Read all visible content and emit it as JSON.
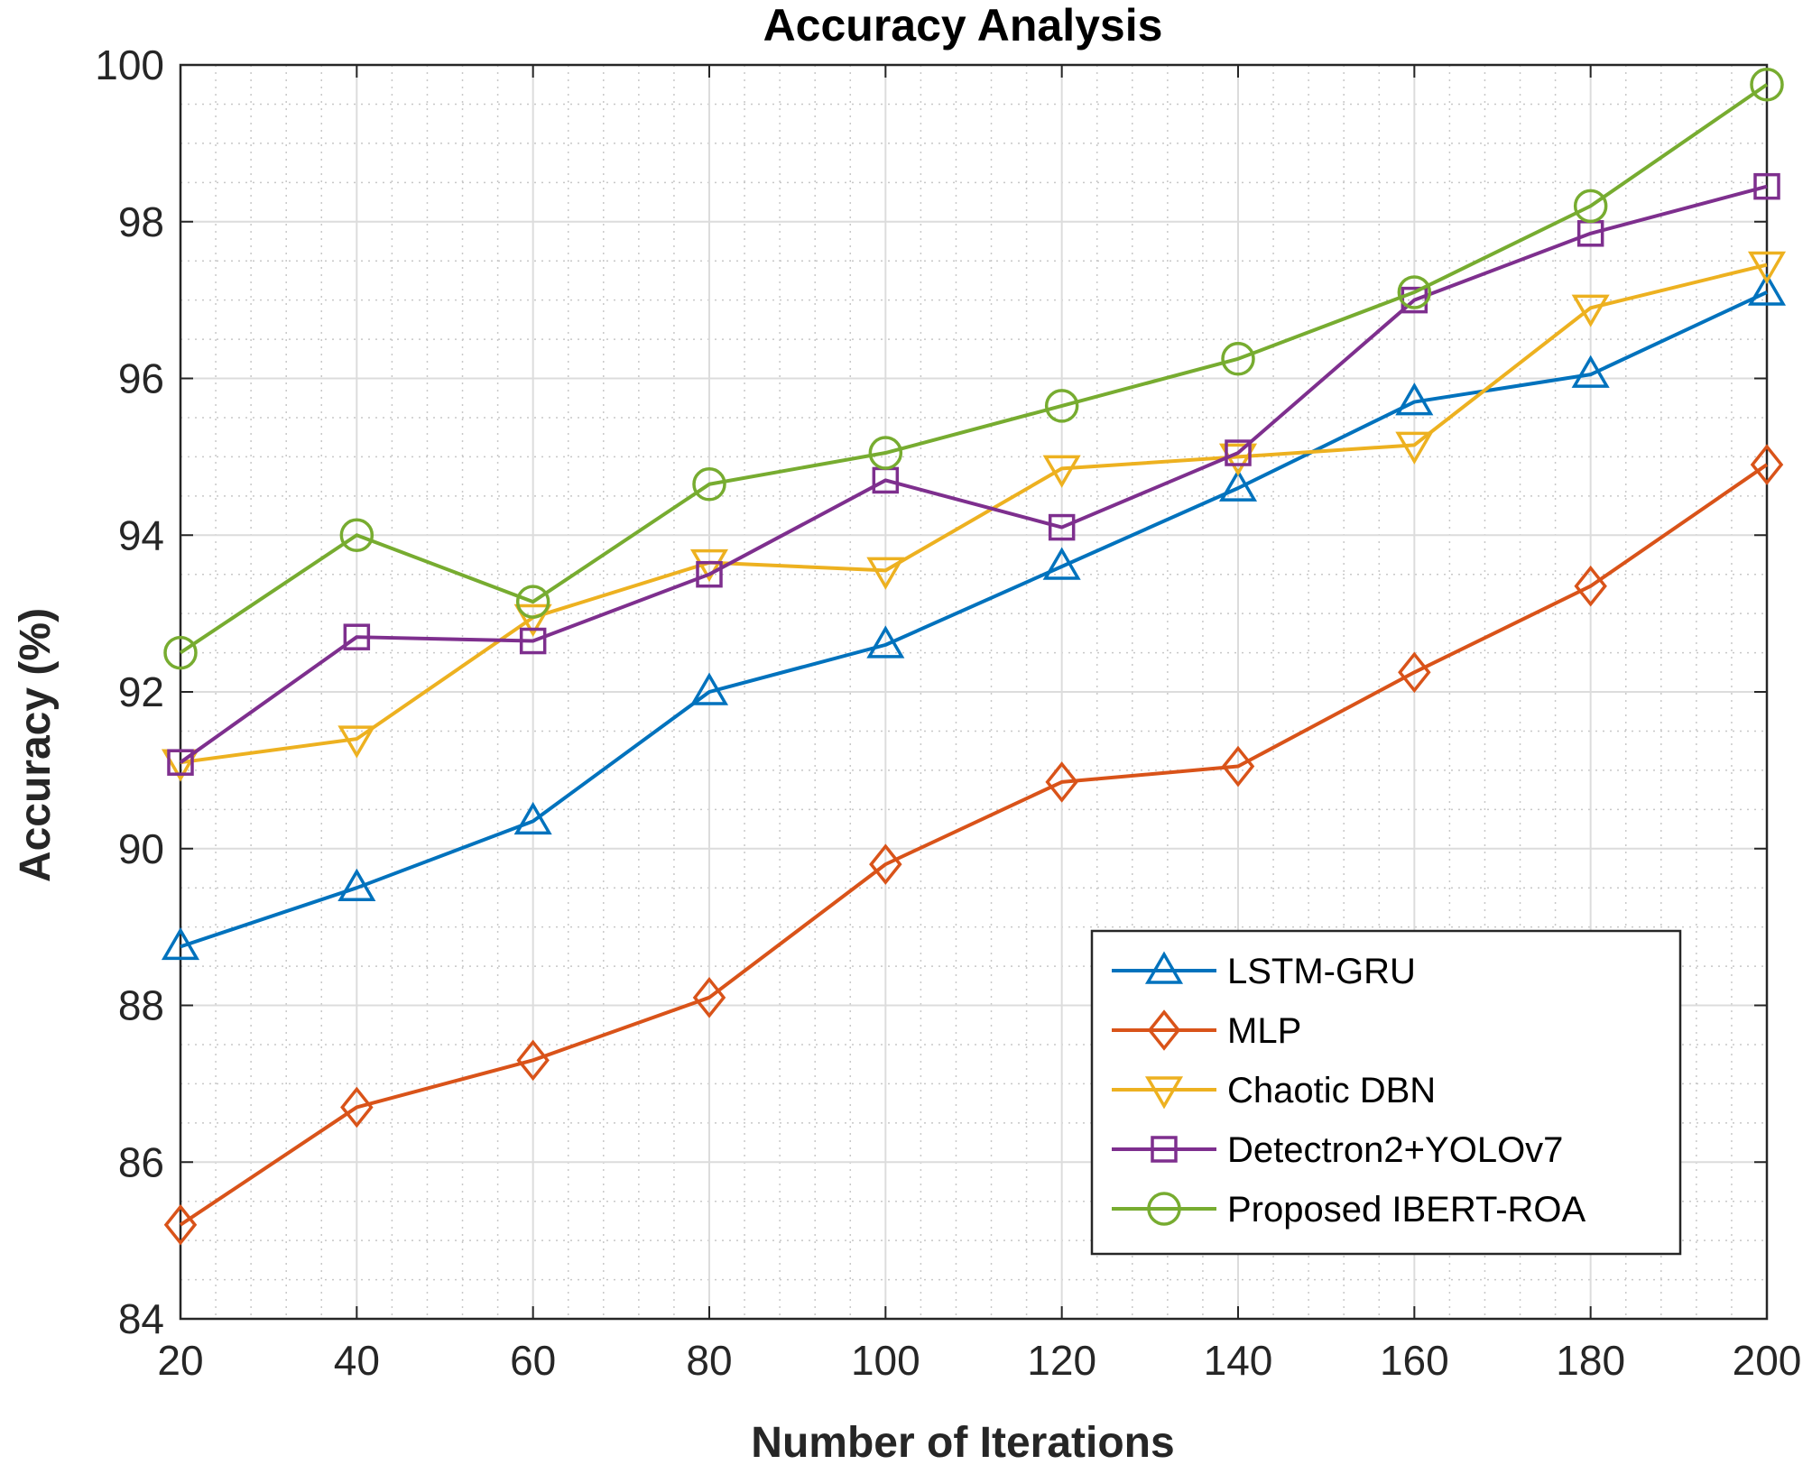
{
  "chart_data": {
    "type": "line",
    "title": "Accuracy Analysis",
    "xlabel": "Number of Iterations",
    "ylabel": "Accuracy (%)",
    "x": [
      20,
      40,
      60,
      80,
      100,
      120,
      140,
      160,
      180,
      200
    ],
    "xlim": [
      20,
      200
    ],
    "ylim": [
      84,
      100
    ],
    "xticks": [
      "20",
      "40",
      "60",
      "80",
      "100",
      "120",
      "140",
      "160",
      "180",
      "200"
    ],
    "yticks": [
      "84",
      "86",
      "88",
      "90",
      "92",
      "94",
      "96",
      "98",
      "100"
    ],
    "grid": true,
    "minor_grid": true,
    "legend_position": "bottom-right",
    "series": [
      {
        "name": "LSTM-GRU",
        "color": "#0072BD",
        "marker": "triangle-up",
        "values": [
          88.75,
          89.5,
          90.35,
          92.0,
          92.6,
          93.6,
          94.6,
          95.7,
          96.05,
          97.1
        ]
      },
      {
        "name": "MLP",
        "color": "#D95319",
        "marker": "diamond",
        "values": [
          85.2,
          86.7,
          87.3,
          88.1,
          89.8,
          90.85,
          91.05,
          92.25,
          93.35,
          94.9
        ]
      },
      {
        "name": "Chaotic DBN",
        "color": "#EDB120",
        "marker": "triangle-down",
        "values": [
          91.1,
          91.4,
          92.95,
          93.65,
          93.55,
          94.85,
          95.0,
          95.15,
          96.9,
          97.45
        ]
      },
      {
        "name": "Detectron2+YOLOv7",
        "color": "#7E2F8E",
        "marker": "square",
        "values": [
          91.1,
          92.7,
          92.65,
          93.5,
          94.7,
          94.1,
          95.05,
          97.0,
          97.85,
          98.45
        ]
      },
      {
        "name": "Proposed IBERT-ROA",
        "color": "#77AC30",
        "marker": "circle",
        "values": [
          92.5,
          94.0,
          93.15,
          94.65,
          95.05,
          95.65,
          96.25,
          97.1,
          98.2,
          99.75
        ]
      }
    ]
  }
}
